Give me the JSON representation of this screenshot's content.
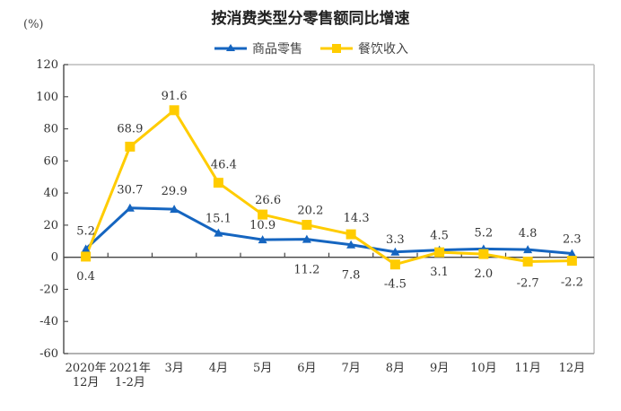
{
  "chart_data": {
    "type": "line",
    "title": "按消费类型分零售额同比增速",
    "ylabel": "(%)",
    "xlabel": "",
    "ylim": [
      -60,
      120
    ],
    "yticks": [
      -60,
      -40,
      -20,
      0,
      20,
      40,
      60,
      80,
      100,
      120
    ],
    "ytick_labels": [
      "-60",
      "-40",
      "-20",
      "0",
      "20",
      "40",
      "60",
      "80",
      "100",
      "120"
    ],
    "grid": false,
    "legend_position": "top-center",
    "categories": [
      [
        "2020年",
        "12月"
      ],
      [
        "2021年",
        "1-2月"
      ],
      [
        "3月"
      ],
      [
        "4月"
      ],
      [
        "5月"
      ],
      [
        "6月"
      ],
      [
        "7月"
      ],
      [
        "8月"
      ],
      [
        "9月"
      ],
      [
        "10月"
      ],
      [
        "11月"
      ],
      [
        "12月"
      ]
    ],
    "series": [
      {
        "name": "商品零售",
        "color": "#1565C0",
        "marker": "triangle",
        "values": [
          5.2,
          30.7,
          29.9,
          15.1,
          10.9,
          11.2,
          7.8,
          3.3,
          4.5,
          5.2,
          4.8,
          2.3
        ],
        "labels": [
          "5.2",
          "30.7",
          "29.9",
          "15.1",
          "10.9",
          "11.2",
          "7.8",
          "3.3",
          "4.5",
          "5.2",
          "4.8",
          "2.3"
        ]
      },
      {
        "name": "餐饮收入",
        "color": "#FFCC00",
        "marker": "square",
        "values": [
          0.4,
          68.9,
          91.6,
          46.4,
          26.6,
          20.2,
          14.3,
          -4.5,
          3.1,
          2.0,
          -2.7,
          -2.2
        ],
        "labels": [
          "0.4",
          "68.9",
          "91.6",
          "46.4",
          "26.6",
          "20.2",
          "14.3",
          "-4.5",
          "3.1",
          "2.0",
          "-2.7",
          "-2.2"
        ]
      }
    ]
  }
}
